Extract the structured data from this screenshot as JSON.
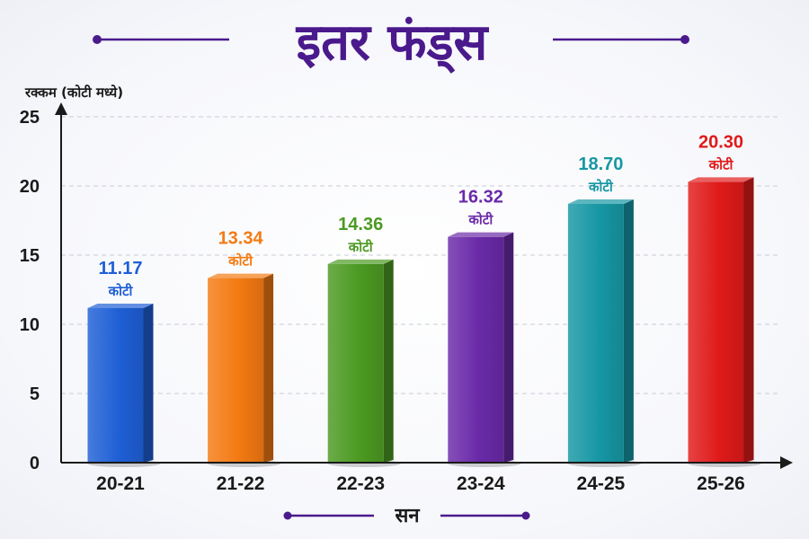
{
  "chart_data": {
    "type": "bar",
    "title": "इतर फंड्स",
    "ylabel": "रक्कम (कोटी मध्ये)",
    "xlabel": "सन",
    "categories": [
      "20-21",
      "21-22",
      "22-23",
      "23-24",
      "24-25",
      "25-26"
    ],
    "values": [
      11.17,
      13.34,
      14.36,
      16.32,
      18.7,
      20.3
    ],
    "value_labels": [
      "11.17",
      "13.34",
      "14.36",
      "16.32",
      "18.70",
      "20.30"
    ],
    "unit_label": "कोटी",
    "ylim": [
      0,
      25
    ],
    "yticks": [
      0,
      5,
      10,
      15,
      20,
      25
    ],
    "grid": true,
    "colors": [
      "#1f5fd6",
      "#f47a12",
      "#4c9a22",
      "#6a2aa8",
      "#1697a4",
      "#e01a1a"
    ],
    "title_color": "#4a1a8c"
  }
}
